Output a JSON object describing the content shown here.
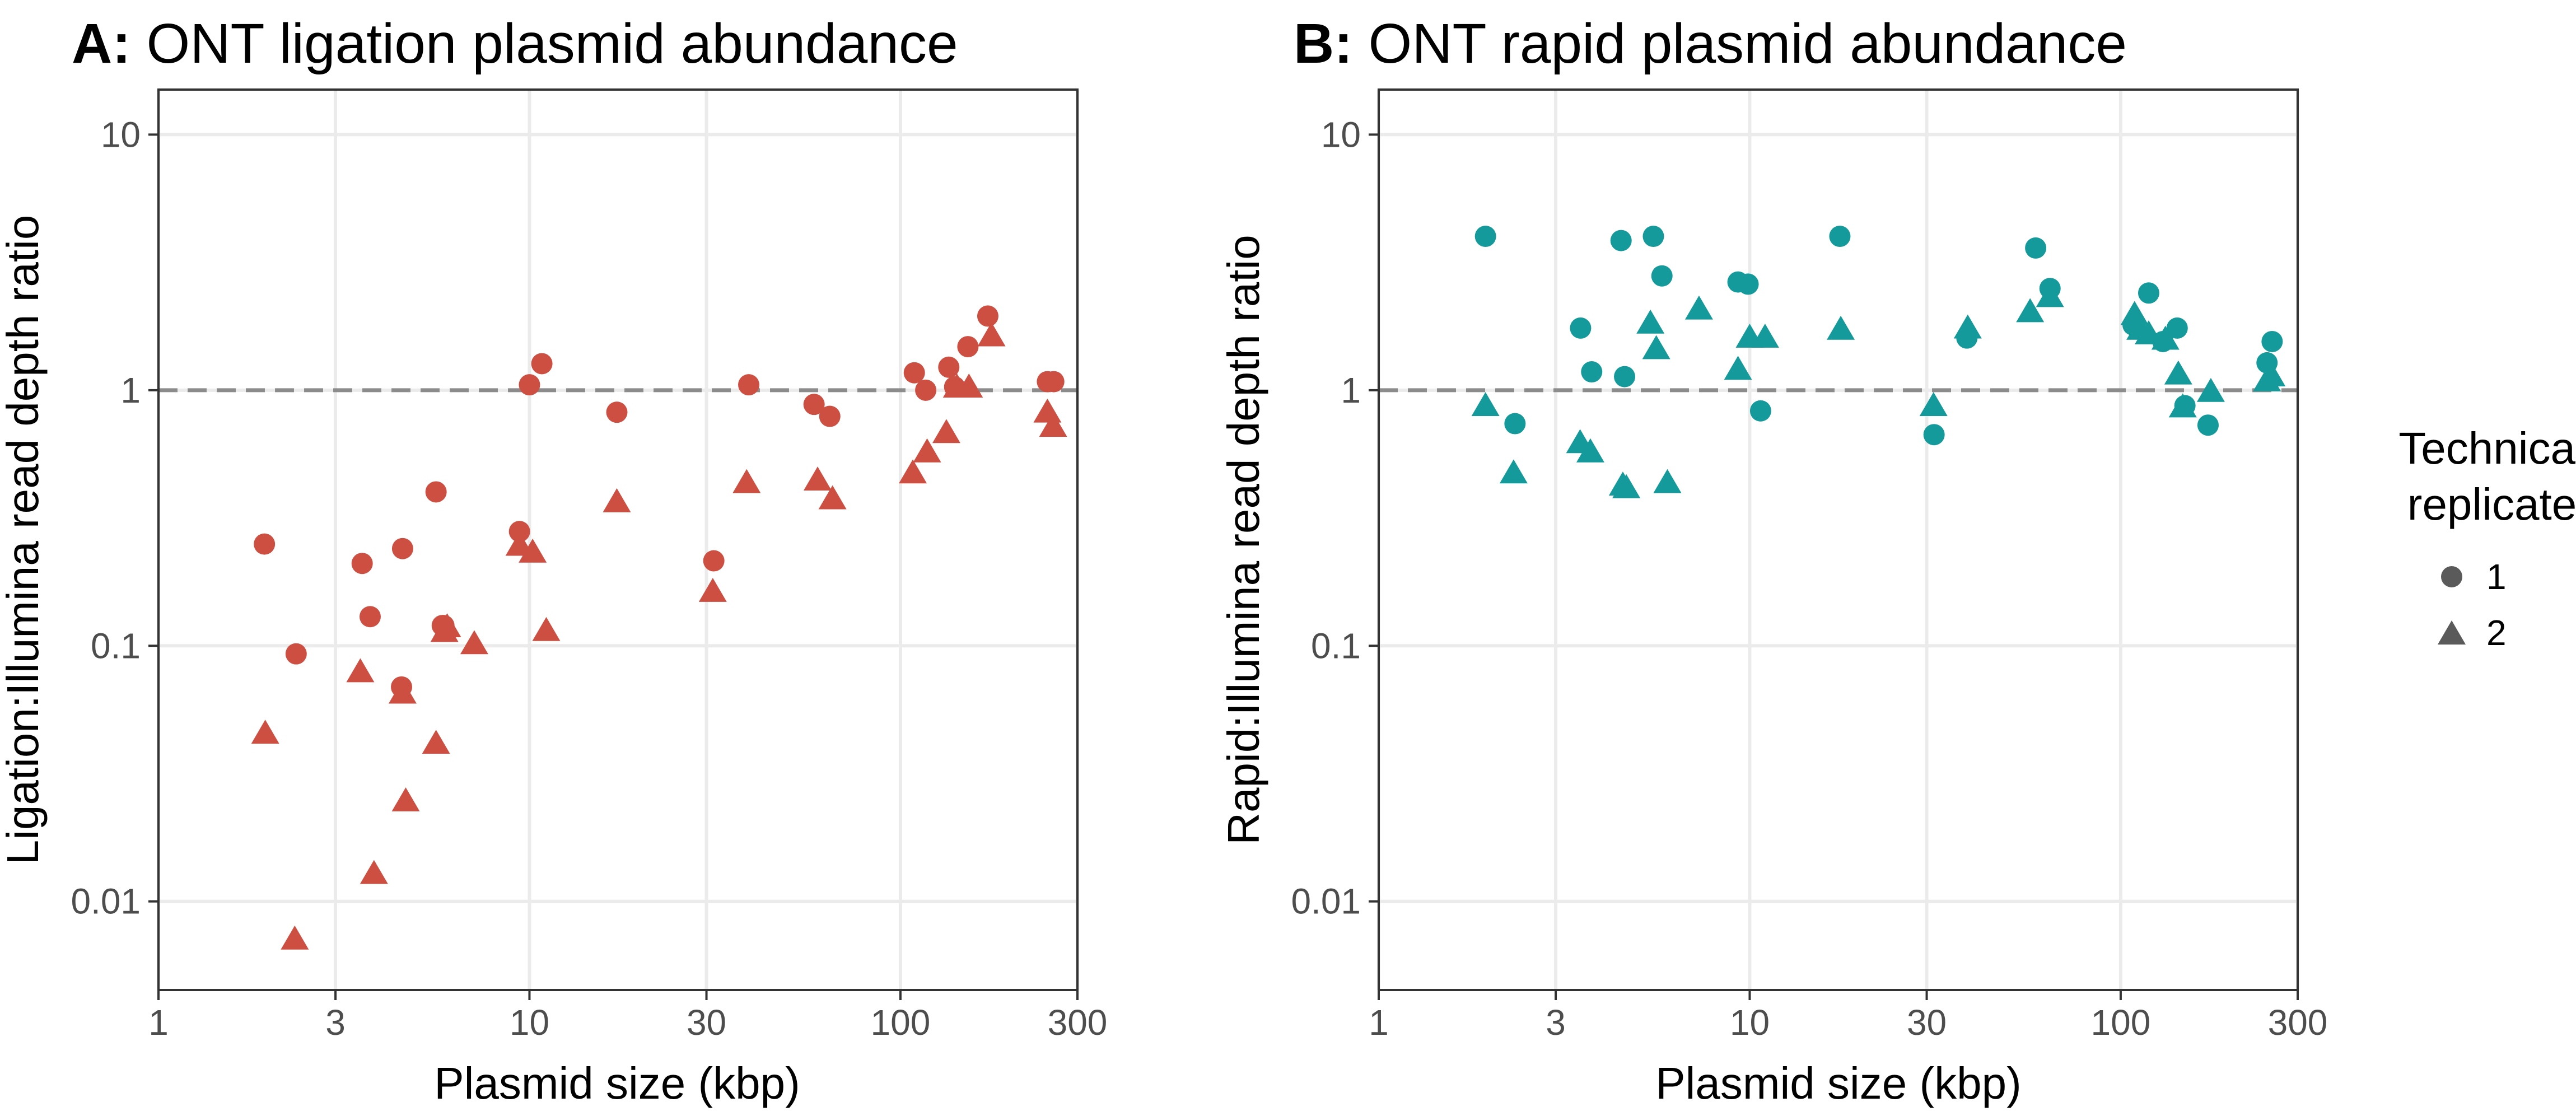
{
  "legend": {
    "title_line1": "Technical",
    "title_line2": "replicate",
    "entries": [
      {
        "label": "1",
        "shape": "circle"
      },
      {
        "label": "2",
        "shape": "triangle"
      }
    ]
  },
  "chart_data": [
    {
      "type": "scatter",
      "panel": "A",
      "title": "ONT ligation plasmid abundance",
      "xlabel": "Plasmid size (kbp)",
      "ylabel": "Ligation:Illumina read depth ratio",
      "xscale": "log",
      "yscale": "log",
      "xlim": [
        1,
        300
      ],
      "ylim": [
        0.0045,
        15
      ],
      "xticks": [
        1,
        3,
        10,
        30,
        100,
        300
      ],
      "xtick_labels": [
        "1",
        "3",
        "10",
        "30",
        "100",
        "300"
      ],
      "yticks": [
        0.01,
        0.1,
        1,
        10
      ],
      "ytick_labels": [
        "0.01",
        "0.1",
        "1",
        "10"
      ],
      "reference_line_y": 1,
      "color": "#cd4f42",
      "series": [
        {
          "name": "1",
          "shape": "circle",
          "points": [
            [
              1.93,
              0.25
            ],
            [
              2.35,
              0.093
            ],
            [
              3.54,
              0.21
            ],
            [
              3.72,
              0.13
            ],
            [
              4.55,
              0.24
            ],
            [
              4.52,
              0.069
            ],
            [
              5.6,
              0.4
            ],
            [
              5.88,
              0.12
            ],
            [
              5.82,
              0.12
            ],
            [
              9.4,
              0.28
            ],
            [
              10.0,
              1.05
            ],
            [
              10.8,
              1.27
            ],
            [
              17.2,
              0.82
            ],
            [
              31.4,
              0.215
            ],
            [
              39.0,
              1.05
            ],
            [
              58.5,
              0.88
            ],
            [
              64.5,
              0.79
            ],
            [
              109.0,
              1.17
            ],
            [
              117.0,
              1.0
            ],
            [
              135.0,
              1.23
            ],
            [
              140.0,
              1.03
            ],
            [
              152.0,
              1.48
            ],
            [
              172.0,
              1.95
            ],
            [
              249.0,
              1.08
            ],
            [
              259.0,
              1.08
            ]
          ]
        },
        {
          "name": "2",
          "shape": "triangle",
          "points": [
            [
              1.94,
              0.046
            ],
            [
              2.33,
              0.0072
            ],
            [
              3.5,
              0.08
            ],
            [
              3.81,
              0.013
            ],
            [
              4.55,
              0.066
            ],
            [
              4.64,
              0.025
            ],
            [
              5.6,
              0.042
            ],
            [
              6.0,
              0.12
            ],
            [
              5.9,
              0.115
            ],
            [
              7.1,
              0.103
            ],
            [
              9.4,
              0.25
            ],
            [
              10.2,
              0.235
            ],
            [
              11.1,
              0.116
            ],
            [
              17.2,
              0.37
            ],
            [
              31.2,
              0.165
            ],
            [
              38.5,
              0.44
            ],
            [
              59.8,
              0.45
            ],
            [
              65.6,
              0.38
            ],
            [
              108.0,
              0.48
            ],
            [
              118.0,
              0.58
            ],
            [
              133.0,
              0.69
            ],
            [
              142.0,
              1.04
            ],
            [
              153.0,
              1.04
            ],
            [
              176.0,
              1.65
            ],
            [
              249.0,
              0.83
            ],
            [
              258.0,
              0.73
            ]
          ]
        }
      ]
    },
    {
      "type": "scatter",
      "panel": "B",
      "title": "ONT rapid plasmid abundance",
      "xlabel": "Plasmid size (kbp)",
      "ylabel": "Rapid:Illumina read depth ratio",
      "xscale": "log",
      "yscale": "log",
      "xlim": [
        1,
        300
      ],
      "ylim": [
        0.0045,
        15
      ],
      "xticks": [
        1,
        3,
        10,
        30,
        100,
        300
      ],
      "xtick_labels": [
        "1",
        "3",
        "10",
        "30",
        "100",
        "300"
      ],
      "yticks": [
        0.01,
        0.1,
        1,
        10
      ],
      "ytick_labels": [
        "0.01",
        "0.1",
        "1",
        "10"
      ],
      "reference_line_y": 1,
      "color": "#149a9a",
      "series": [
        {
          "name": "1",
          "shape": "circle",
          "points": [
            [
              1.94,
              4.0
            ],
            [
              2.33,
              0.74
            ],
            [
              3.5,
              1.75
            ],
            [
              3.75,
              1.18
            ],
            [
              4.5,
              3.85
            ],
            [
              4.6,
              1.13
            ],
            [
              5.5,
              4.0
            ],
            [
              5.8,
              2.8
            ],
            [
              9.3,
              2.65
            ],
            [
              9.9,
              2.6
            ],
            [
              10.7,
              0.83
            ],
            [
              17.5,
              4.0
            ],
            [
              31.4,
              0.67
            ],
            [
              38.5,
              1.6
            ],
            [
              59.0,
              3.6
            ],
            [
              64.5,
              2.5
            ],
            [
              108.0,
              1.8
            ],
            [
              119.0,
              2.4
            ],
            [
              130.0,
              1.55
            ],
            [
              142.0,
              1.75
            ],
            [
              149.0,
              0.87
            ],
            [
              172.0,
              0.73
            ],
            [
              248.0,
              1.28
            ],
            [
              256.0,
              1.55
            ]
          ]
        },
        {
          "name": "2",
          "shape": "triangle",
          "points": [
            [
              1.94,
              0.88
            ],
            [
              2.31,
              0.48
            ],
            [
              3.49,
              0.63
            ],
            [
              3.72,
              0.58
            ],
            [
              4.55,
              0.43
            ],
            [
              4.65,
              0.42
            ],
            [
              5.4,
              1.85
            ],
            [
              5.6,
              1.47
            ],
            [
              6.0,
              0.44
            ],
            [
              7.3,
              2.1
            ],
            [
              9.3,
              1.22
            ],
            [
              10.0,
              1.63
            ],
            [
              11.0,
              1.63
            ],
            [
              17.6,
              1.75
            ],
            [
              31.3,
              0.88
            ],
            [
              38.7,
              1.77
            ],
            [
              57.0,
              2.05
            ],
            [
              64.5,
              2.35
            ],
            [
              109.0,
              2.0
            ],
            [
              113.0,
              1.75
            ],
            [
              119.0,
              1.68
            ],
            [
              132.0,
              1.6
            ],
            [
              143.0,
              1.17
            ],
            [
              147.0,
              0.87
            ],
            [
              175.0,
              1.0
            ],
            [
              248.0,
              1.1
            ],
            [
              255.0,
              1.15
            ]
          ]
        }
      ]
    }
  ]
}
